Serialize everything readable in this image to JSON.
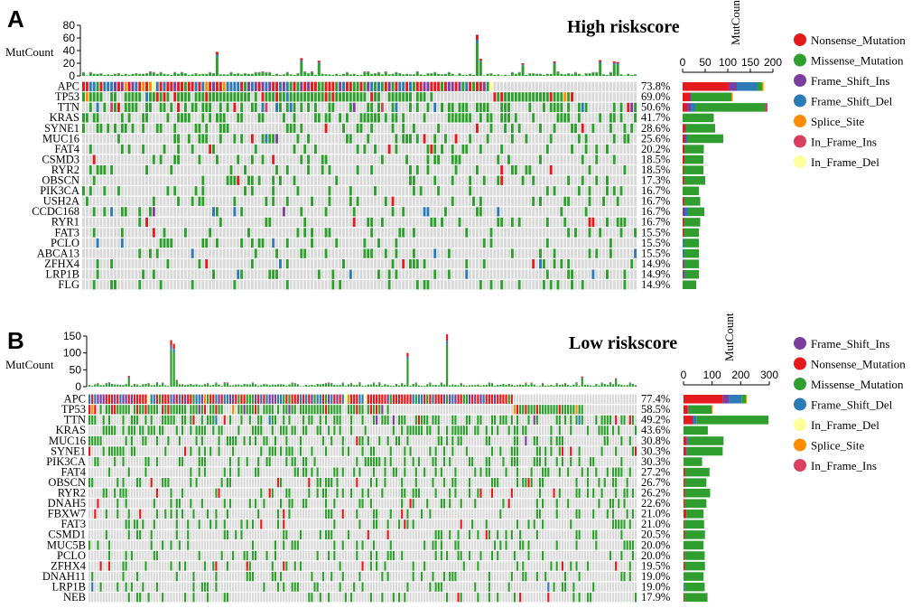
{
  "colors": {
    "Nonsense_Mutation": "#e41a1c",
    "Missense_Mutation": "#2f9e2f",
    "Frame_Shift_Ins": "#7b3fa0",
    "Frame_Shift_Del": "#2c7bb6",
    "Splice_Site": "#ff8c00",
    "In_Frame_Ins": "#d94060",
    "In_Frame_Del": "#ffff99",
    "background": "#d9d9d9"
  },
  "chart_data": [
    {
      "type": "oncoplot",
      "panel_label": "A",
      "title": "High riskscore",
      "top_ylabel": "MutCount",
      "top_ylim": [
        0,
        80
      ],
      "top_ticks": [
        "0",
        "20",
        "40",
        "60",
        "80"
      ],
      "side_xlabel": "MutCount",
      "side_xlim": [
        0,
        200
      ],
      "side_ticks": [
        "0",
        "50",
        "100",
        "150",
        "200"
      ],
      "n_samples": 158,
      "top_spikes": [
        {
          "sample": 38,
          "value": 38
        },
        {
          "sample": 62,
          "value": 28
        },
        {
          "sample": 67,
          "value": 24
        },
        {
          "sample": 112,
          "value": 65
        },
        {
          "sample": 113,
          "value": 27
        },
        {
          "sample": 125,
          "value": 20
        },
        {
          "sample": 134,
          "value": 23
        },
        {
          "sample": 147,
          "value": 25
        },
        {
          "sample": 151,
          "value": 23
        },
        {
          "sample": 152,
          "value": 22
        }
      ],
      "genes": [
        {
          "gene": "APC",
          "pct": "73.8%",
          "freq": 0.738,
          "counts": {
            "Nonsense_Mutation": 102,
            "Frame_Shift_Ins": 18,
            "Frame_Shift_Del": 46,
            "Missense_Mutation": 10,
            "Splice_Site": 3,
            "In_Frame_Del": 3
          }
        },
        {
          "gene": "TP53",
          "pct": "69.0%",
          "freq": 0.69,
          "counts": {
            "Nonsense_Mutation": 17,
            "Missense_Mutation": 88,
            "Frame_Shift_Del": 3,
            "Splice_Site": 3
          }
        },
        {
          "gene": "TTN",
          "pct": "50.6%",
          "freq": 0.506,
          "counts": {
            "Missense_Mutation": 155,
            "Frame_Shift_Del": 10,
            "Nonsense_Mutation": 10,
            "Frame_Shift_Ins": 8,
            "In_Frame_Ins": 5
          }
        },
        {
          "gene": "KRAS",
          "pct": "41.7%",
          "freq": 0.417,
          "counts": {
            "Missense_Mutation": 69
          }
        },
        {
          "gene": "SYNE1",
          "pct": "28.6%",
          "freq": 0.286,
          "counts": {
            "Missense_Mutation": 65,
            "Nonsense_Mutation": 5,
            "Frame_Shift_Ins": 2
          }
        },
        {
          "gene": "MUC16",
          "pct": "25.6%",
          "freq": 0.256,
          "counts": {
            "Nonsense_Mutation": 4,
            "Missense_Mutation": 80,
            "Frame_Shift_Ins": 4,
            "Frame_Shift_Del": 2
          }
        },
        {
          "gene": "FAT4",
          "pct": "20.2%",
          "freq": 0.202,
          "counts": {
            "Missense_Mutation": 43,
            "Nonsense_Mutation": 4
          }
        },
        {
          "gene": "CSMD3",
          "pct": "18.5%",
          "freq": 0.185,
          "counts": {
            "Missense_Mutation": 42,
            "Nonsense_Mutation": 4
          }
        },
        {
          "gene": "RYR2",
          "pct": "18.5%",
          "freq": 0.185,
          "counts": {
            "Missense_Mutation": 44,
            "Nonsense_Mutation": 2
          }
        },
        {
          "gene": "OBSCN",
          "pct": "17.3%",
          "freq": 0.173,
          "counts": {
            "Missense_Mutation": 47,
            "Nonsense_Mutation": 3
          }
        },
        {
          "gene": "PIK3CA",
          "pct": "16.7%",
          "freq": 0.167,
          "counts": {
            "Missense_Mutation": 36
          }
        },
        {
          "gene": "USH2A",
          "pct": "16.7%",
          "freq": 0.167,
          "counts": {
            "Missense_Mutation": 36,
            "Nonsense_Mutation": 3
          }
        },
        {
          "gene": "CCDC168",
          "pct": "16.7%",
          "freq": 0.167,
          "counts": {
            "Missense_Mutation": 36,
            "Frame_Shift_Del": 6,
            "Frame_Shift_Ins": 6
          }
        },
        {
          "gene": "RYR1",
          "pct": "16.7%",
          "freq": 0.167,
          "counts": {
            "Missense_Mutation": 36,
            "Nonsense_Mutation": 3
          }
        },
        {
          "gene": "FAT3",
          "pct": "15.5%",
          "freq": 0.155,
          "counts": {
            "Missense_Mutation": 33,
            "Nonsense_Mutation": 3
          }
        },
        {
          "gene": "PCLO",
          "pct": "15.5%",
          "freq": 0.155,
          "counts": {
            "Missense_Mutation": 33,
            "Frame_Shift_Del": 3
          }
        },
        {
          "gene": "ABCA13",
          "pct": "15.5%",
          "freq": 0.155,
          "counts": {
            "Missense_Mutation": 33,
            "Frame_Shift_Del": 3
          }
        },
        {
          "gene": "ZFHX4",
          "pct": "14.9%",
          "freq": 0.149,
          "counts": {
            "Missense_Mutation": 31,
            "Frame_Shift_Del": 3,
            "Nonsense_Mutation": 2
          }
        },
        {
          "gene": "LRP1B",
          "pct": "14.9%",
          "freq": 0.149,
          "counts": {
            "Missense_Mutation": 30,
            "Frame_Shift_Del": 4,
            "Nonsense_Mutation": 2
          }
        },
        {
          "gene": "FLG",
          "pct": "14.9%",
          "freq": 0.149,
          "counts": {
            "Missense_Mutation": 30
          }
        }
      ],
      "legend": [
        "Nonsense_Mutation",
        "Missense_Mutation",
        "Frame_Shift_Ins",
        "Frame_Shift_Del",
        "Splice_Site",
        "In_Frame_Ins",
        "In_Frame_Del"
      ],
      "legend_position": "right"
    },
    {
      "type": "oncoplot",
      "panel_label": "B",
      "title": "Low riskscore",
      "top_ylabel": "MutCount",
      "top_ylim": [
        0,
        150
      ],
      "top_ticks": [
        "0",
        "50",
        "100",
        "150"
      ],
      "side_xlabel": "MutCount",
      "side_xlim": [
        0,
        300
      ],
      "side_ticks": [
        "0",
        "100",
        "200",
        "300"
      ],
      "n_samples": 195,
      "top_spikes": [
        {
          "sample": 14,
          "value": 32
        },
        {
          "sample": 29,
          "value": 138
        },
        {
          "sample": 30,
          "value": 127
        },
        {
          "sample": 31,
          "value": 20
        },
        {
          "sample": 113,
          "value": 100
        },
        {
          "sample": 127,
          "value": 155
        },
        {
          "sample": 175,
          "value": 30
        },
        {
          "sample": 187,
          "value": 25
        }
      ],
      "genes": [
        {
          "gene": "APC",
          "pct": "77.4%",
          "freq": 0.774,
          "counts": {
            "Nonsense_Mutation": 138,
            "Frame_Shift_Ins": 22,
            "Frame_Shift_Del": 43,
            "Missense_Mutation": 15,
            "Splice_Site": 3,
            "In_Frame_Del": 3
          }
        },
        {
          "gene": "TP53",
          "pct": "58.5%",
          "freq": 0.585,
          "counts": {
            "Missense_Mutation": 80,
            "Nonsense_Mutation": 15,
            "Frame_Shift_Ins": 3,
            "Splice_Site": 4
          }
        },
        {
          "gene": "TTN",
          "pct": "49.2%",
          "freq": 0.492,
          "counts": {
            "Nonsense_Mutation": 30,
            "Missense_Mutation": 252,
            "Frame_Shift_Del": 10,
            "Frame_Shift_Ins": 5
          }
        },
        {
          "gene": "KRAS",
          "pct": "43.6%",
          "freq": 0.436,
          "counts": {
            "Missense_Mutation": 85
          }
        },
        {
          "gene": "MUC16",
          "pct": "30.8%",
          "freq": 0.308,
          "counts": {
            "Missense_Mutation": 125,
            "Nonsense_Mutation": 10,
            "Frame_Shift_Ins": 5
          }
        },
        {
          "gene": "SYNE1",
          "pct": "30.3%",
          "freq": 0.303,
          "counts": {
            "Missense_Mutation": 125,
            "Nonsense_Mutation": 8,
            "Frame_Shift_Ins": 4
          }
        },
        {
          "gene": "PIK3CA",
          "pct": "30.3%",
          "freq": 0.303,
          "counts": {
            "Missense_Mutation": 65
          }
        },
        {
          "gene": "FAT4",
          "pct": "27.2%",
          "freq": 0.272,
          "counts": {
            "Missense_Mutation": 85,
            "Nonsense_Mutation": 6
          }
        },
        {
          "gene": "OBSCN",
          "pct": "26.7%",
          "freq": 0.267,
          "counts": {
            "Missense_Mutation": 75,
            "Nonsense_Mutation": 5
          }
        },
        {
          "gene": "RYR2",
          "pct": "26.2%",
          "freq": 0.262,
          "counts": {
            "Missense_Mutation": 88,
            "Nonsense_Mutation": 5
          }
        },
        {
          "gene": "DNAH5",
          "pct": "22.6%",
          "freq": 0.226,
          "counts": {
            "Missense_Mutation": 75,
            "Nonsense_Mutation": 5
          }
        },
        {
          "gene": "FBXW7",
          "pct": "21.0%",
          "freq": 0.21,
          "counts": {
            "Missense_Mutation": 60,
            "Nonsense_Mutation": 10
          }
        },
        {
          "gene": "FAT3",
          "pct": "21.0%",
          "freq": 0.21,
          "counts": {
            "Missense_Mutation": 68,
            "Nonsense_Mutation": 4
          }
        },
        {
          "gene": "CSMD1",
          "pct": "20.5%",
          "freq": 0.205,
          "counts": {
            "Missense_Mutation": 70,
            "Nonsense_Mutation": 5
          }
        },
        {
          "gene": "MUC5B",
          "pct": "20.0%",
          "freq": 0.2,
          "counts": {
            "Missense_Mutation": 70
          }
        },
        {
          "gene": "PCLO",
          "pct": "20.0%",
          "freq": 0.2,
          "counts": {
            "Missense_Mutation": 70,
            "Nonsense_Mutation": 4
          }
        },
        {
          "gene": "ZFHX4",
          "pct": "19.5%",
          "freq": 0.195,
          "counts": {
            "Missense_Mutation": 70,
            "Nonsense_Mutation": 5
          }
        },
        {
          "gene": "DNAH11",
          "pct": "19.0%",
          "freq": 0.19,
          "counts": {
            "Missense_Mutation": 70
          }
        },
        {
          "gene": "LRP1B",
          "pct": "19.0%",
          "freq": 0.19,
          "counts": {
            "Missense_Mutation": 70,
            "Frame_Shift_Del": 4
          }
        },
        {
          "gene": "NEB",
          "pct": "17.9%",
          "freq": 0.179,
          "counts": {
            "Missense_Mutation": 80,
            "Nonsense_Mutation": 4
          }
        }
      ],
      "legend": [
        "Frame_Shift_Ins",
        "Nonsense_Mutation",
        "Missense_Mutation",
        "Frame_Shift_Del",
        "In_Frame_Del",
        "Splice_Site",
        "In_Frame_Ins"
      ],
      "legend_position": "right"
    }
  ]
}
